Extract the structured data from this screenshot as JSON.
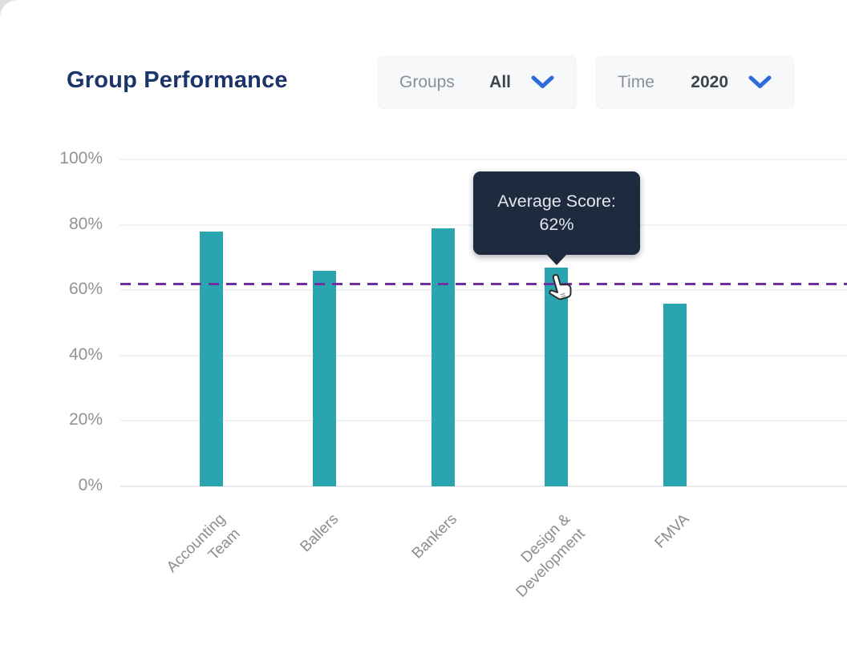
{
  "header": {
    "title": "Group Performance"
  },
  "filters": {
    "groups": {
      "label": "Groups",
      "value": "All"
    },
    "time": {
      "label": "Time",
      "value": "2020"
    }
  },
  "chart_data": {
    "type": "bar",
    "title": "Group Performance",
    "categories": [
      "Accounting Team",
      "Ballers",
      "Bankers",
      "Design & Development",
      "FMVA"
    ],
    "category_lines": [
      [
        "Accounting",
        "Team"
      ],
      [
        "Ballers"
      ],
      [
        "Bankers"
      ],
      [
        "Design &",
        "Development"
      ],
      [
        "FMVA"
      ]
    ],
    "values": [
      78,
      66,
      79,
      67,
      56
    ],
    "unit": "%",
    "xlabel": "",
    "ylabel": "",
    "ylim": [
      0,
      100
    ],
    "y_ticks": [
      "100%",
      "80%",
      "60%",
      "40%",
      "20%",
      "0%"
    ],
    "grid": true,
    "legend": false,
    "average_line": {
      "value": 62,
      "style": "dashed"
    },
    "tooltip": {
      "line1": "Average Score:",
      "line2": "62%"
    },
    "colors": {
      "bar": "#2aa5af",
      "average_line": "#7030a0",
      "title": "#1b356b",
      "chevron": "#2e6bd9",
      "tooltip_bg": "#1e2a3d"
    }
  }
}
